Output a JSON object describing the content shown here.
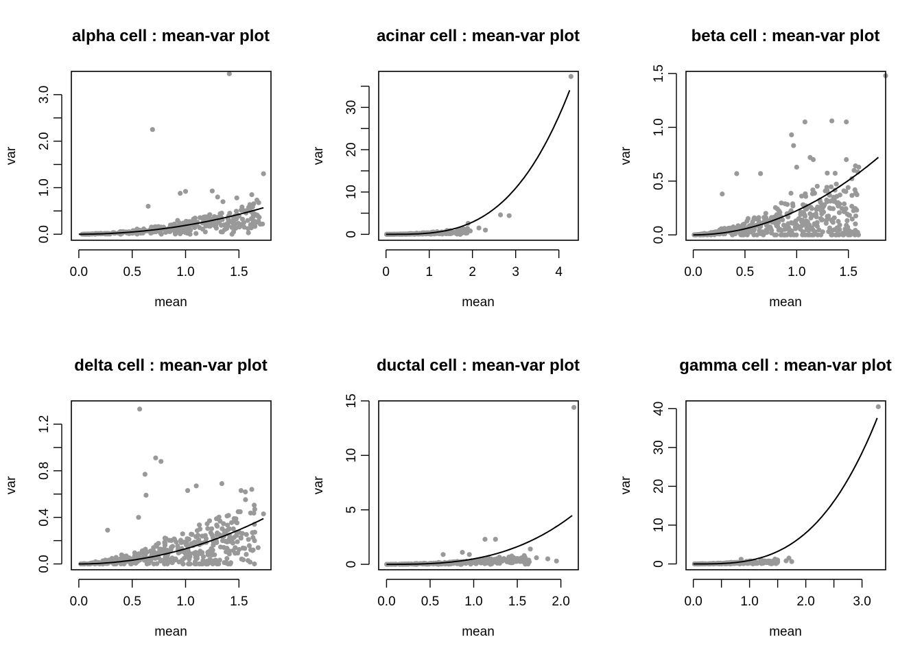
{
  "figure": {
    "xlabel": "mean",
    "ylabel": "var",
    "point_color": "#999999",
    "curve_color": "#000000"
  },
  "chart_data": [
    {
      "type": "scatter",
      "title": "alpha cell : mean-var plot",
      "xlabel": "mean",
      "ylabel": "var",
      "xlim": [
        -0.07,
        1.8
      ],
      "ylim": [
        -0.13,
        3.5
      ],
      "xticks": [
        0.0,
        0.5,
        1.0,
        1.5
      ],
      "xtick_labels": [
        "0.0",
        "0.5",
        "1.0",
        "1.5"
      ],
      "yticks": [
        0.0,
        0.5,
        1.0,
        1.5,
        2.0,
        2.5,
        3.0
      ],
      "ytick_labels": [
        "0.0",
        "",
        "1.0",
        "",
        "2.0",
        "",
        "3.0"
      ],
      "curve": {
        "a": 0.19,
        "p": 2.0,
        "xmax": 1.73
      },
      "highlight_points": [
        [
          1.41,
          3.45
        ],
        [
          0.69,
          2.25
        ],
        [
          1.73,
          1.3
        ],
        [
          1.0,
          0.92
        ],
        [
          0.95,
          0.88
        ],
        [
          1.25,
          0.93
        ],
        [
          1.3,
          0.8
        ],
        [
          1.48,
          0.78
        ],
        [
          1.35,
          0.7
        ],
        [
          1.62,
          0.85
        ],
        [
          0.65,
          0.6
        ],
        [
          1.72,
          0.22
        ],
        [
          1.55,
          0.15
        ],
        [
          1.45,
          0.05
        ]
      ],
      "cloud": {
        "n": 330,
        "seed": 11,
        "xmax": 1.7,
        "a": 0.16,
        "p": 1.7,
        "spread": 0.55
      }
    },
    {
      "type": "scatter",
      "title": "acinar cell : mean-var plot",
      "xlabel": "mean",
      "ylabel": "var",
      "xlim": [
        -0.17,
        4.45
      ],
      "ylim": [
        -1.4,
        38.5
      ],
      "xticks": [
        0,
        1,
        2,
        3,
        4
      ],
      "xtick_labels": [
        "0",
        "1",
        "2",
        "3",
        "4"
      ],
      "yticks": [
        0,
        5,
        10,
        15,
        20,
        25,
        30,
        35
      ],
      "ytick_labels": [
        "0",
        "",
        "10",
        "",
        "20",
        "",
        "30",
        ""
      ],
      "curve": {
        "a": 0.3,
        "p": 3.27,
        "xmax": 4.25
      },
      "highlight_points": [
        [
          4.28,
          37.3
        ],
        [
          2.65,
          4.6
        ],
        [
          2.85,
          4.4
        ],
        [
          2.3,
          1.0
        ],
        [
          2.15,
          1.5
        ],
        [
          1.9,
          2.6
        ],
        [
          1.95,
          0.8
        ]
      ],
      "cloud": {
        "n": 220,
        "seed": 23,
        "xmax": 1.9,
        "a": 0.25,
        "p": 1.6,
        "spread": 0.6
      }
    },
    {
      "type": "scatter",
      "title": "beta cell : mean-var plot",
      "xlabel": "mean",
      "ylabel": "var",
      "xlim": [
        -0.07,
        1.86
      ],
      "ylim": [
        -0.05,
        1.52
      ],
      "xticks": [
        0.0,
        0.5,
        1.0,
        1.5
      ],
      "xtick_labels": [
        "0.0",
        "0.5",
        "1.0",
        "1.5"
      ],
      "yticks": [
        0.0,
        0.5,
        1.0,
        1.5
      ],
      "ytick_labels": [
        "0.0",
        "0.5",
        "1.0",
        "1.5"
      ],
      "curve": {
        "a": 0.225,
        "p": 2.0,
        "xmax": 1.79
      },
      "highlight_points": [
        [
          1.86,
          1.48
        ],
        [
          1.34,
          1.06
        ],
        [
          1.48,
          1.05
        ],
        [
          1.08,
          1.05
        ],
        [
          0.95,
          0.93
        ],
        [
          0.97,
          0.83
        ],
        [
          1.13,
          0.72
        ],
        [
          1.0,
          0.63
        ],
        [
          1.16,
          0.7
        ],
        [
          1.48,
          0.7
        ],
        [
          1.6,
          0.63
        ],
        [
          0.42,
          0.57
        ],
        [
          0.65,
          0.57
        ],
        [
          0.28,
          0.38
        ],
        [
          1.58,
          0.23
        ],
        [
          1.3,
          0.15
        ],
        [
          1.4,
          0.3
        ]
      ],
      "cloud": {
        "n": 420,
        "seed": 37,
        "xmax": 1.6,
        "a": 0.14,
        "p": 1.4,
        "spread": 0.9
      }
    },
    {
      "type": "scatter",
      "title": "delta cell : mean-var plot",
      "xlabel": "mean",
      "ylabel": "var",
      "xlim": [
        -0.07,
        1.8
      ],
      "ylim": [
        -0.05,
        1.4
      ],
      "xticks": [
        0.0,
        0.5,
        1.0,
        1.5
      ],
      "xtick_labels": [
        "0.0",
        "0.5",
        "1.0",
        "1.5"
      ],
      "yticks": [
        0.0,
        0.2,
        0.4,
        0.6,
        0.8,
        1.0,
        1.2
      ],
      "ytick_labels": [
        "0.0",
        "",
        "0.4",
        "",
        "0.8",
        "",
        "1.2"
      ],
      "curve": {
        "a": 0.13,
        "p": 2.0,
        "xmax": 1.73
      },
      "highlight_points": [
        [
          0.57,
          1.33
        ],
        [
          0.72,
          0.91
        ],
        [
          0.77,
          0.88
        ],
        [
          0.62,
          0.77
        ],
        [
          0.63,
          0.59
        ],
        [
          1.1,
          0.67
        ],
        [
          1.02,
          0.63
        ],
        [
          0.56,
          0.4
        ],
        [
          1.34,
          0.69
        ],
        [
          1.52,
          0.63
        ],
        [
          1.62,
          0.64
        ],
        [
          1.73,
          0.43
        ],
        [
          1.68,
          0.14
        ],
        [
          0.27,
          0.29
        ],
        [
          1.48,
          0.27
        ]
      ],
      "cloud": {
        "n": 420,
        "seed": 53,
        "xmax": 1.65,
        "a": 0.12,
        "p": 1.5,
        "spread": 0.9
      }
    },
    {
      "type": "scatter",
      "title": "ductal cell : mean-var plot",
      "xlabel": "mean",
      "ylabel": "var",
      "xlim": [
        -0.09,
        2.2
      ],
      "ylim": [
        -0.5,
        15.0
      ],
      "xticks": [
        0.0,
        0.5,
        1.0,
        1.5,
        2.0
      ],
      "xtick_labels": [
        "0.0",
        "0.5",
        "1.0",
        "1.5",
        "2.0"
      ],
      "yticks": [
        0,
        5,
        10,
        15
      ],
      "ytick_labels": [
        "0",
        "5",
        "10",
        "15"
      ],
      "curve": {
        "a": 0.5,
        "p": 2.9,
        "xmax": 2.13
      },
      "highlight_points": [
        [
          2.15,
          14.4
        ],
        [
          1.13,
          2.3
        ],
        [
          1.25,
          2.3
        ],
        [
          1.65,
          1.4
        ],
        [
          1.58,
          0.8
        ],
        [
          0.87,
          1.1
        ],
        [
          0.95,
          0.9
        ],
        [
          1.85,
          0.5
        ],
        [
          1.95,
          0.3
        ],
        [
          1.72,
          0.6
        ],
        [
          0.65,
          0.9
        ]
      ],
      "cloud": {
        "n": 300,
        "seed": 71,
        "xmax": 1.65,
        "a": 0.2,
        "p": 1.6,
        "spread": 0.6
      }
    },
    {
      "type": "scatter",
      "title": "gamma cell : mean-var plot",
      "xlabel": "mean",
      "ylabel": "var",
      "xlim": [
        -0.13,
        3.42
      ],
      "ylim": [
        -1.5,
        42.0
      ],
      "xticks": [
        0.0,
        0.5,
        1.0,
        1.5,
        2.0,
        2.5,
        3.0
      ],
      "xtick_labels": [
        "0.0",
        "",
        "1.0",
        "",
        "2.0",
        "",
        "3.0"
      ],
      "yticks": [
        0,
        10,
        20,
        30,
        40
      ],
      "ytick_labels": [
        "0",
        "10",
        "20",
        "30",
        "40"
      ],
      "curve": {
        "a": 0.9,
        "p": 3.15,
        "xmax": 3.27
      },
      "highlight_points": [
        [
          3.29,
          40.5
        ],
        [
          1.7,
          1.5
        ],
        [
          1.75,
          0.6
        ],
        [
          1.65,
          0.8
        ],
        [
          1.45,
          0.6
        ],
        [
          0.85,
          1.2
        ]
      ],
      "cloud": {
        "n": 230,
        "seed": 97,
        "xmax": 1.5,
        "a": 0.35,
        "p": 1.5,
        "spread": 0.6
      }
    }
  ]
}
